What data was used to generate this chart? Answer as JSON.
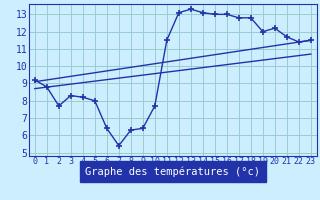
{
  "xlabel": "Graphe des températures (°c)",
  "x_values": [
    0,
    1,
    2,
    3,
    4,
    5,
    6,
    7,
    8,
    9,
    10,
    11,
    12,
    13,
    14,
    15,
    16,
    17,
    18,
    19,
    20,
    21,
    22,
    23
  ],
  "temp_curve": [
    9.2,
    8.8,
    7.7,
    8.3,
    8.2,
    8.0,
    6.4,
    5.4,
    6.3,
    6.4,
    7.7,
    11.5,
    13.1,
    13.3,
    13.1,
    13.0,
    13.0,
    12.8,
    12.8,
    12.0,
    12.2,
    11.7,
    11.4,
    11.5
  ],
  "trend1_x": [
    0,
    23
  ],
  "trend1_y": [
    8.7,
    10.7
  ],
  "trend2_x": [
    0,
    23
  ],
  "trend2_y": [
    9.1,
    11.5
  ],
  "line_color": "#2233aa",
  "bg_color": "#cceeff",
  "grid_color": "#99cccc",
  "axis_color": "#2233aa",
  "label_bg": "#2233aa",
  "label_fg": "#ffffff",
  "ylim": [
    4.8,
    13.6
  ],
  "xlim": [
    -0.5,
    23.5
  ],
  "yticks": [
    5,
    6,
    7,
    8,
    9,
    10,
    11,
    12,
    13
  ],
  "xticks": [
    0,
    1,
    2,
    3,
    4,
    5,
    6,
    7,
    8,
    9,
    10,
    11,
    12,
    13,
    14,
    15,
    16,
    17,
    18,
    19,
    20,
    21,
    22,
    23
  ],
  "marker": "+",
  "markersize": 4,
  "markeredgewidth": 1.2,
  "linewidth": 1.0,
  "tick_fontsize": 6.5,
  "xlabel_fontsize": 7.5
}
